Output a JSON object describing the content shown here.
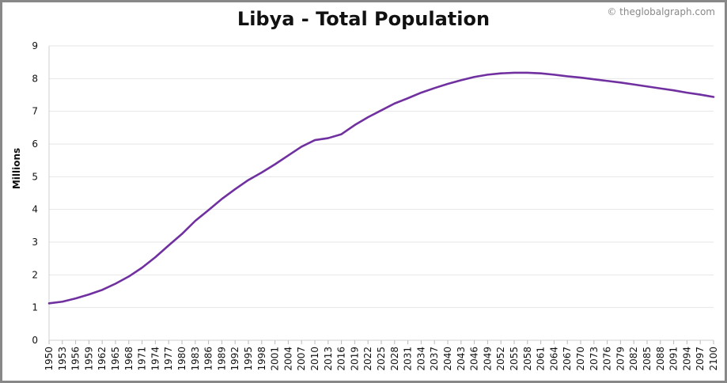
{
  "chart_data": {
    "type": "line",
    "title": "Libya - Total Population",
    "credit": "© theglobalgraph.com",
    "ylabel": "Millions",
    "xlabel": "",
    "xlim": [
      1950,
      2100
    ],
    "ylim": [
      0,
      9
    ],
    "yticks": [
      0,
      1,
      2,
      3,
      4,
      5,
      6,
      7,
      8,
      9
    ],
    "xticks": [
      1950,
      1953,
      1956,
      1959,
      1962,
      1965,
      1968,
      1971,
      1974,
      1977,
      1980,
      1983,
      1986,
      1989,
      1992,
      1995,
      1998,
      2001,
      2004,
      2007,
      2010,
      2013,
      2016,
      2019,
      2022,
      2025,
      2028,
      2031,
      2034,
      2037,
      2040,
      2043,
      2046,
      2049,
      2052,
      2055,
      2058,
      2061,
      2064,
      2067,
      2070,
      2073,
      2076,
      2079,
      2082,
      2085,
      2088,
      2091,
      2094,
      2097,
      2100
    ],
    "grid": true,
    "line_color": "#7030a0",
    "series": [
      {
        "x": [
          1950,
          1953,
          1956,
          1959,
          1962,
          1965,
          1968,
          1971,
          1974,
          1977,
          1980,
          1983,
          1986,
          1989,
          1992,
          1995,
          1998,
          2001,
          2004,
          2007,
          2010,
          2013,
          2016,
          2019,
          2022,
          2025,
          2028,
          2031,
          2034,
          2037,
          2040,
          2043,
          2046,
          2049,
          2052,
          2055,
          2058,
          2061,
          2064,
          2067,
          2070,
          2073,
          2076,
          2079,
          2082,
          2085,
          2088,
          2091,
          2094,
          2097,
          2100
        ],
        "values": [
          1.13,
          1.18,
          1.28,
          1.4,
          1.54,
          1.73,
          1.95,
          2.22,
          2.54,
          2.9,
          3.25,
          3.65,
          3.98,
          4.32,
          4.62,
          4.9,
          5.13,
          5.38,
          5.65,
          5.92,
          6.12,
          6.18,
          6.3,
          6.58,
          6.82,
          7.03,
          7.24,
          7.4,
          7.57,
          7.71,
          7.84,
          7.95,
          8.05,
          8.12,
          8.16,
          8.18,
          8.18,
          8.16,
          8.12,
          8.07,
          8.03,
          7.98,
          7.93,
          7.88,
          7.82,
          7.76,
          7.7,
          7.64,
          7.57,
          7.51,
          7.44
        ]
      }
    ]
  }
}
